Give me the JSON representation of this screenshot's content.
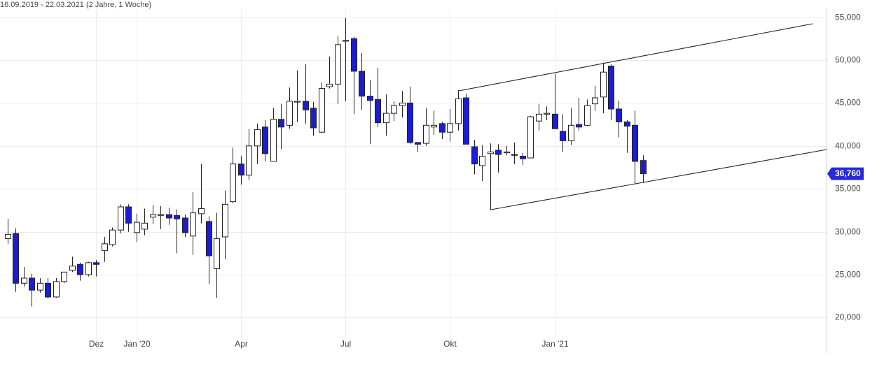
{
  "chart_data": {
    "type": "candlestick",
    "subtitle": "16.09.2019 - 22.03.2021   (2 Jahre, 1 Woche)",
    "categories": [
      null,
      null,
      null,
      null,
      null,
      null,
      null,
      null,
      null,
      null,
      null,
      "Dez",
      null,
      null,
      null,
      null,
      "Jan '20",
      null,
      null,
      null,
      null,
      null,
      null,
      null,
      null,
      null,
      null,
      null,
      null,
      "Apr",
      null,
      null,
      null,
      null,
      null,
      null,
      null,
      null,
      null,
      null,
      null,
      null,
      "Jul",
      null,
      null,
      null,
      null,
      null,
      null,
      null,
      null,
      null,
      null,
      null,
      null,
      "Okt",
      null,
      null,
      null,
      null,
      null,
      null,
      null,
      null,
      null,
      null,
      null,
      null,
      "Jan '21",
      null,
      null,
      null,
      null,
      null,
      null,
      null,
      null,
      null,
      null,
      null
    ],
    "open": [
      29200,
      29800,
      24000,
      24600,
      23200,
      24000,
      22400,
      24200,
      25500,
      26200,
      25000,
      26400,
      27800,
      28500,
      30200,
      32900,
      29900,
      30300,
      31700,
      31900,
      32000,
      31900,
      31600,
      29500,
      32100,
      31200,
      25700,
      29400,
      33500,
      37900,
      36600,
      40000,
      42200,
      38200,
      43100,
      42400,
      45100,
      45200,
      44400,
      41600,
      46900,
      47200,
      52200,
      52500,
      48700,
      45800,
      45400,
      42700,
      43800,
      44700,
      45000,
      40400,
      40300,
      42200,
      42600,
      41600,
      42600,
      45600,
      39900,
      37700,
      39100,
      39500,
      39200,
      39000,
      38800,
      38600,
      42900,
      43700,
      43700,
      41700,
      40600,
      42500,
      42400,
      44900,
      45700,
      49300,
      44300,
      42800,
      42400,
      38300
    ],
    "high": [
      31500,
      30400,
      25900,
      25100,
      24600,
      24600,
      24600,
      25300,
      27100,
      26400,
      26500,
      26700,
      29400,
      30500,
      33200,
      33200,
      32100,
      32700,
      33100,
      33000,
      32800,
      32600,
      32000,
      34600,
      37900,
      31800,
      32200,
      34800,
      39800,
      38800,
      42000,
      42600,
      43000,
      44400,
      44900,
      46800,
      48800,
      49500,
      45100,
      47400,
      50400,
      52800,
      54900,
      52700,
      50800,
      47700,
      49100,
      46000,
      45200,
      46400,
      46900,
      40400,
      44400,
      44100,
      42800,
      44300,
      46500,
      46100,
      40700,
      40100,
      40300,
      40200,
      40000,
      40400,
      39200,
      43500,
      44900,
      44600,
      48400,
      43700,
      44400,
      45600,
      45400,
      47000,
      49700,
      49500,
      45300,
      43000,
      44100,
      38900
    ],
    "low": [
      28600,
      23000,
      23600,
      21300,
      22900,
      22200,
      22300,
      24000,
      25300,
      24300,
      24800,
      24800,
      26500,
      28300,
      29800,
      30000,
      28800,
      29600,
      30900,
      30300,
      30800,
      27500,
      29400,
      27300,
      31000,
      23900,
      22300,
      26800,
      33300,
      35500,
      36000,
      37900,
      38200,
      38200,
      39600,
      42000,
      42800,
      42600,
      41200,
      41500,
      46700,
      44900,
      45200,
      43700,
      44200,
      40200,
      42200,
      41200,
      42900,
      43300,
      40200,
      39300,
      40000,
      41300,
      40800,
      40500,
      41800,
      40200,
      36700,
      35900,
      32500,
      36900,
      38900,
      37900,
      37800,
      38600,
      41800,
      43000,
      42000,
      39300,
      40100,
      41800,
      42300,
      44100,
      43800,
      43000,
      41000,
      39200,
      35600,
      35700
    ],
    "close": [
      29700,
      24000,
      24600,
      23200,
      24000,
      22400,
      24200,
      25300,
      26000,
      25000,
      26400,
      26200,
      28600,
      30200,
      32900,
      31000,
      31100,
      31000,
      32000,
      32000,
      31600,
      31500,
      29900,
      32200,
      32700,
      27200,
      29200,
      33200,
      37900,
      36600,
      40000,
      41900,
      39100,
      43100,
      42200,
      45200,
      45200,
      44200,
      42100,
      46700,
      47200,
      51800,
      52300,
      48700,
      45800,
      45300,
      42700,
      43800,
      44700,
      45000,
      40400,
      40200,
      42400,
      42400,
      41600,
      42600,
      45500,
      40200,
      37900,
      38800,
      39300,
      39000,
      39300,
      38900,
      38500,
      43400,
      43700,
      43800,
      42000,
      40600,
      42400,
      42200,
      44700,
      45600,
      48600,
      44300,
      42800,
      42300,
      38200,
      36760
    ],
    "up_color": "#ffffff",
    "down_color": "#1c1cd4",
    "ylim": [
      18000,
      57000
    ],
    "yticks": [
      {
        "value": 20000,
        "label": "20,000"
      },
      {
        "value": 25000,
        "label": "25,000"
      },
      {
        "value": 30000,
        "label": "30,000"
      },
      {
        "value": 35000,
        "label": "35,000"
      },
      {
        "value": 40000,
        "label": "40,000"
      },
      {
        "value": 45000,
        "label": "45,000"
      },
      {
        "value": 50000,
        "label": "50,000"
      },
      {
        "value": 55000,
        "label": "55,000"
      }
    ],
    "grid": true,
    "last_price": {
      "value": 36760,
      "label": "36,760"
    },
    "last_price_color": "#2a2ad8"
  }
}
